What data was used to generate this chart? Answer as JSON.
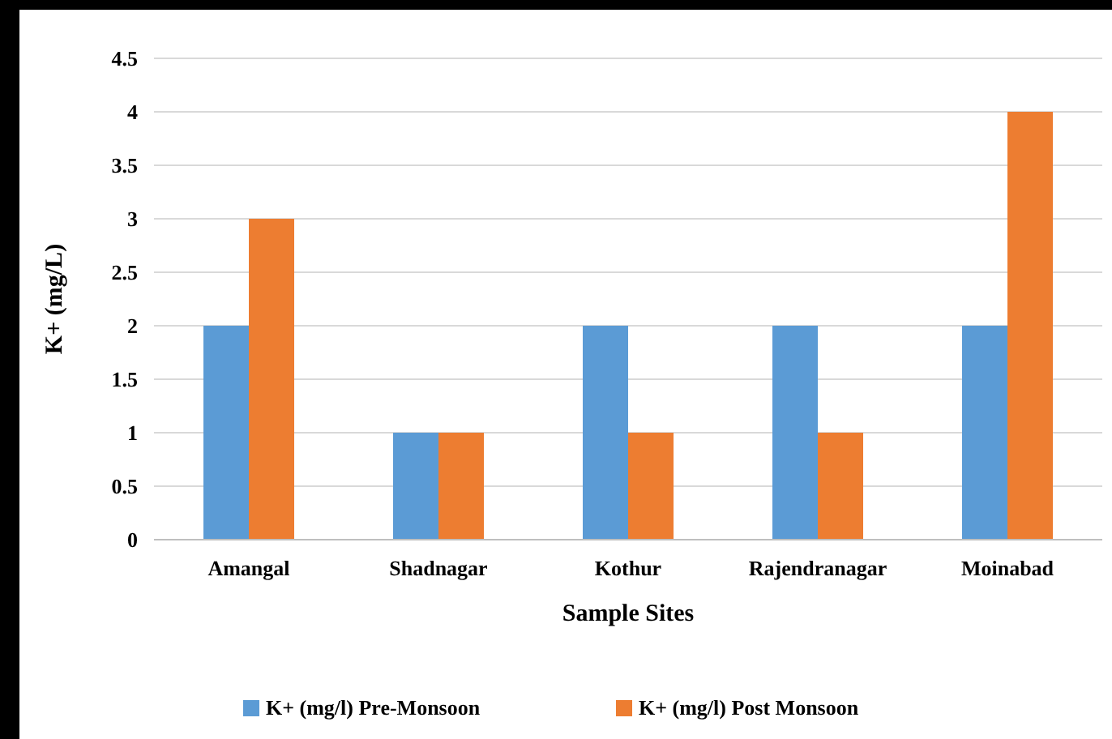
{
  "chart_data": {
    "type": "bar",
    "xlabel": "Sample Sites",
    "ylabel": "K+ (mg/L)",
    "categories": [
      "Amangal",
      "Shadnagar",
      "Kothur",
      "Rajendranagar",
      "Moinabad"
    ],
    "series": [
      {
        "name": "K+ (mg/l) Pre-Monsoon",
        "color": "#5b9bd5",
        "values": [
          2,
          1,
          2,
          2,
          2
        ]
      },
      {
        "name": "K+ (mg/l) Post Monsoon",
        "color": "#ed7d31",
        "values": [
          3,
          1,
          1,
          1,
          4
        ]
      }
    ],
    "ylim": [
      0,
      4.5
    ],
    "yticks": [
      0,
      0.5,
      1,
      1.5,
      2,
      2.5,
      3,
      3.5,
      4,
      4.5
    ],
    "grid": "y",
    "legend": "bottom"
  }
}
